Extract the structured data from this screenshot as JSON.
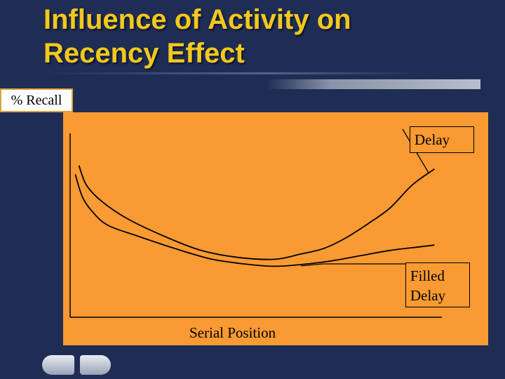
{
  "slide": {
    "title_lines": [
      "Influence of Activity on",
      "Recency Effect"
    ]
  },
  "chart_data": {
    "type": "line",
    "title": "",
    "ylabel": "% Recall",
    "xlabel": "Serial Position",
    "xlim": [
      0,
      1
    ],
    "ylim": [
      0,
      1
    ],
    "grid": false,
    "series": [
      {
        "name": "Delay",
        "color": "#000000",
        "x": [
          0.02,
          0.04,
          0.08,
          0.15,
          0.25,
          0.35,
          0.45,
          0.55,
          0.62,
          0.68,
          0.74,
          0.8,
          0.86,
          0.92,
          0.98
        ],
        "y": [
          0.85,
          0.74,
          0.65,
          0.55,
          0.45,
          0.37,
          0.33,
          0.32,
          0.35,
          0.38,
          0.44,
          0.52,
          0.61,
          0.74,
          0.83
        ]
      },
      {
        "name": "Filled Delay",
        "color": "#000000",
        "x": [
          0.01,
          0.03,
          0.06,
          0.1,
          0.18,
          0.28,
          0.38,
          0.48,
          0.55,
          0.62,
          0.7,
          0.78,
          0.86,
          0.94,
          0.98
        ],
        "y": [
          0.8,
          0.67,
          0.58,
          0.51,
          0.45,
          0.38,
          0.32,
          0.29,
          0.28,
          0.29,
          0.31,
          0.34,
          0.37,
          0.39,
          0.4
        ]
      }
    ],
    "legend": [
      {
        "lines": [
          "Delay"
        ],
        "placement": "top-right"
      },
      {
        "lines": [
          "Filled",
          "Delay"
        ],
        "placement": "bottom-right"
      }
    ]
  }
}
